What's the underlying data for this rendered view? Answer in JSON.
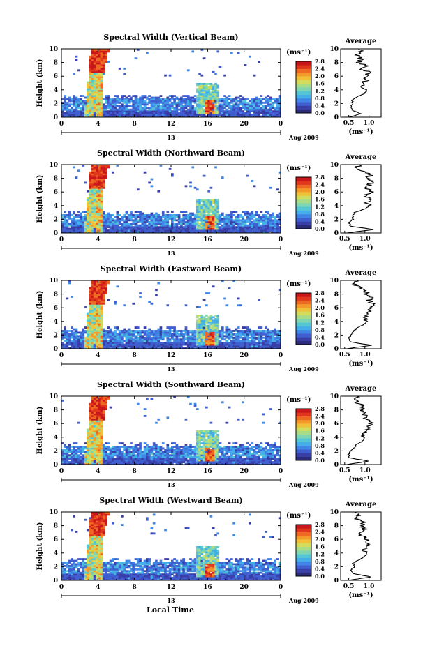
{
  "figure": {
    "x_axis_label": "Local Time",
    "date_label": "Aug 2009",
    "day_label": "13",
    "colorbar_unit": "(ms⁻¹)",
    "profile_title": "Average",
    "profile_unit": "(ms⁻¹)",
    "colorscale": [
      "#2b2b7a",
      "#3a3fa8",
      "#3f5fd0",
      "#3f86e6",
      "#44aee8",
      "#55c6d4",
      "#7fd6b0",
      "#a9dc86",
      "#d4dc5c",
      "#f0c23a",
      "#f39a2a",
      "#ee6a22",
      "#e0361c",
      "#c8161a"
    ]
  },
  "chart_data": [
    {
      "type": "heatmap",
      "title": "Spectral Width (Vertical Beam)",
      "xlabel": "",
      "ylabel": "Height (km)",
      "xlim": [
        0,
        24
      ],
      "ylim": [
        0,
        10
      ],
      "xticks": [
        "0",
        "4",
        "8",
        "12",
        "16",
        "20",
        "0"
      ],
      "yticks": [
        "0",
        "2",
        "4",
        "6",
        "8",
        "10"
      ],
      "colorbar": {
        "ticks": [
          "0.0",
          "0.4",
          "0.8",
          "1.2",
          "1.6",
          "2.0",
          "2.4",
          "2.8"
        ],
        "range": [
          0.0,
          2.8
        ]
      },
      "profile": {
        "title": "Average",
        "xticks": [
          "0.5",
          "1.0"
        ],
        "xlim": [
          0.3,
          1.3
        ],
        "ylim": [
          0,
          10
        ],
        "height_km": [
          0,
          0.5,
          1,
          1.5,
          2,
          2.5,
          3,
          3.5,
          4,
          4.5,
          5,
          5.5,
          6,
          6.5,
          7,
          7.5,
          8,
          8.5,
          9,
          9.5,
          10
        ],
        "width_ms": [
          0.5,
          0.8,
          0.6,
          0.55,
          0.6,
          0.58,
          0.7,
          0.9,
          0.95,
          0.8,
          0.85,
          0.95,
          0.9,
          1.0,
          0.85,
          0.95,
          0.75,
          0.8,
          0.7,
          0.8,
          0.75
        ]
      }
    },
    {
      "type": "heatmap",
      "title": "Spectral Width (Northward Beam)",
      "xlabel": "",
      "ylabel": "Height (km)",
      "xlim": [
        0,
        24
      ],
      "ylim": [
        0,
        10
      ],
      "xticks": [
        "0",
        "4",
        "8",
        "12",
        "16",
        "20",
        "0"
      ],
      "yticks": [
        "0",
        "2",
        "4",
        "6",
        "8",
        "10"
      ],
      "colorbar": {
        "ticks": [
          "0.0",
          "0.4",
          "0.8",
          "1.2",
          "1.6",
          "2.0",
          "2.4",
          "2.8"
        ],
        "range": [
          0.0,
          2.8
        ]
      },
      "profile": {
        "title": "Average",
        "xticks": [
          "0.5",
          "1.0"
        ],
        "xlim": [
          0.4,
          1.4
        ],
        "ylim": [
          0,
          10
        ],
        "height_km": [
          0,
          0.5,
          1,
          1.5,
          2,
          2.5,
          3,
          3.5,
          4,
          4.5,
          5,
          5.5,
          6,
          6.5,
          7,
          7.5,
          8,
          8.5,
          9,
          9.5,
          10
        ],
        "width_ms": [
          0.55,
          1.2,
          0.65,
          0.6,
          0.7,
          0.7,
          0.75,
          1.0,
          1.1,
          1.05,
          1.1,
          1.0,
          1.15,
          1.05,
          1.1,
          1.2,
          1.05,
          1.15,
          0.95,
          0.75,
          0.9
        ]
      }
    },
    {
      "type": "heatmap",
      "title": "Spectral Width (Eastward Beam)",
      "xlabel": "",
      "ylabel": "Height (km)",
      "xlim": [
        0,
        24
      ],
      "ylim": [
        0,
        10
      ],
      "xticks": [
        "0",
        "4",
        "8",
        "12",
        "16",
        "20",
        "0"
      ],
      "yticks": [
        "0",
        "2",
        "4",
        "6",
        "8",
        "10"
      ],
      "colorbar": {
        "ticks": [
          "0.0",
          "0.4",
          "0.8",
          "1.2",
          "1.6",
          "2.0",
          "2.4",
          "2.8"
        ],
        "range": [
          0.0,
          2.8
        ]
      },
      "profile": {
        "title": "Average",
        "xticks": [
          "0.5",
          "1.0"
        ],
        "xlim": [
          0.4,
          1.4
        ],
        "ylim": [
          0,
          10
        ],
        "height_km": [
          0,
          0.5,
          1,
          1.5,
          2,
          2.5,
          3,
          3.5,
          4,
          4.5,
          5,
          5.5,
          6,
          6.5,
          7,
          7.5,
          8,
          8.5,
          9,
          9.5,
          10
        ],
        "width_ms": [
          0.55,
          1.15,
          0.65,
          0.6,
          0.65,
          0.7,
          0.8,
          0.95,
          1.05,
          1.0,
          1.05,
          1.15,
          1.1,
          1.2,
          1.1,
          1.15,
          1.0,
          1.05,
          0.85,
          0.75,
          0.8
        ]
      }
    },
    {
      "type": "heatmap",
      "title": "Spectral Width (Southward Beam)",
      "xlabel": "",
      "ylabel": "Height (km)",
      "xlim": [
        0,
        24
      ],
      "ylim": [
        0,
        10
      ],
      "xticks": [
        "0",
        "4",
        "8",
        "12",
        "16",
        "20",
        "0"
      ],
      "yticks": [
        "0",
        "2",
        "4",
        "6",
        "8",
        "10"
      ],
      "colorbar": {
        "ticks": [
          "0.0",
          "0.4",
          "0.8",
          "1.2",
          "1.6",
          "2.0",
          "2.4",
          "2.8"
        ],
        "range": [
          0.0,
          2.8
        ]
      },
      "profile": {
        "title": "Average",
        "xticks": [
          "0.5",
          "1.0"
        ],
        "xlim": [
          0.4,
          1.4
        ],
        "ylim": [
          0,
          10
        ],
        "height_km": [
          0,
          0.5,
          1,
          1.5,
          2,
          2.5,
          3,
          3.5,
          4,
          4.5,
          5,
          5.5,
          6,
          6.5,
          7,
          7.5,
          8,
          8.5,
          9,
          9.5,
          10
        ],
        "width_ms": [
          0.55,
          1.1,
          0.6,
          0.6,
          0.65,
          0.75,
          0.8,
          0.95,
          1.0,
          0.95,
          1.05,
          1.1,
          1.15,
          1.05,
          1.0,
          1.0,
          0.9,
          0.95,
          0.8,
          0.75,
          0.8
        ]
      }
    },
    {
      "type": "heatmap",
      "title": "Spectral Width (Westward Beam)",
      "xlabel": "Local Time",
      "ylabel": "Height (km)",
      "xlim": [
        0,
        24
      ],
      "ylim": [
        0,
        10
      ],
      "xticks": [
        "0",
        "4",
        "8",
        "12",
        "16",
        "20",
        "0"
      ],
      "yticks": [
        "0",
        "2",
        "4",
        "6",
        "8",
        "10"
      ],
      "colorbar": {
        "ticks": [
          "0.0",
          "0.4",
          "0.8",
          "1.2",
          "1.6",
          "2.0",
          "2.4",
          "2.8"
        ],
        "range": [
          0.0,
          2.8
        ]
      },
      "profile": {
        "title": "Average",
        "xticks": [
          "0.5",
          "1.0"
        ],
        "xlim": [
          0.3,
          1.3
        ],
        "ylim": [
          0,
          10
        ],
        "height_km": [
          0,
          0.5,
          1,
          1.5,
          2,
          2.5,
          3,
          3.5,
          4,
          4.5,
          5,
          5.5,
          6,
          6.5,
          7,
          7.5,
          8,
          8.5,
          9,
          9.5,
          10
        ],
        "width_ms": [
          0.5,
          1.05,
          0.6,
          0.55,
          0.65,
          0.6,
          0.75,
          0.9,
          0.95,
          0.85,
          0.95,
          1.0,
          0.95,
          0.85,
          0.75,
          0.9,
          0.8,
          0.9,
          0.7,
          0.75,
          0.7
        ]
      }
    }
  ]
}
